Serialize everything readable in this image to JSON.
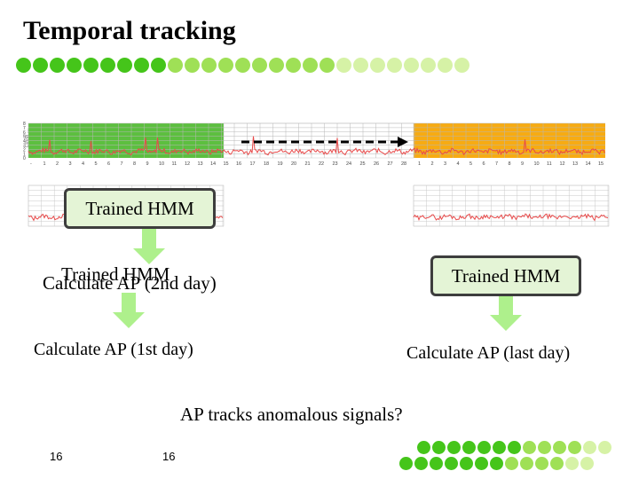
{
  "title": "Temporal tracking",
  "colors": {
    "dot_dark": "#45c51a",
    "dot_mid": "#9fe056",
    "dot_light": "#d6f2a6",
    "train_region": "#5cbf3f",
    "test_region": "#f7ab12",
    "box_fill": "#e4f4d6",
    "signal": "#e84a4a",
    "arrow": "#aef08c"
  },
  "chart_main": {
    "ticks_left": [
      "-",
      "1",
      "2",
      "3",
      "4",
      "5",
      "6",
      "7",
      "8",
      "9",
      "10",
      "11",
      "12",
      "13",
      "14",
      "15"
    ],
    "ticks_mid": [
      "16",
      "17",
      "18",
      "19",
      "20",
      "21",
      "22",
      "23",
      "24",
      "25",
      "26",
      "27",
      "28"
    ],
    "ticks_right": [
      "1",
      "2",
      "3",
      "4",
      "5",
      "6",
      "7",
      "8",
      "9",
      "10",
      "11",
      "12",
      "13",
      "14",
      "15"
    ],
    "y_ticks": [
      "8",
      "7",
      "6",
      "5",
      "4",
      "3",
      "2",
      "1",
      "0"
    ]
  },
  "boxes": {
    "trained_hmm_1": "Trained HMM",
    "trained_hmm_2": "Trained HMM",
    "trained_hmm_3": "Trained HMM"
  },
  "labels": {
    "calc_2nd": "Calculate AP (2nd day)",
    "calc_1st": "Calculate AP (1st day)",
    "calc_last": "Calculate AP (last day)",
    "question": "AP tracks anomalous signals?"
  },
  "page_numbers": {
    "left": "16",
    "center": "16"
  }
}
